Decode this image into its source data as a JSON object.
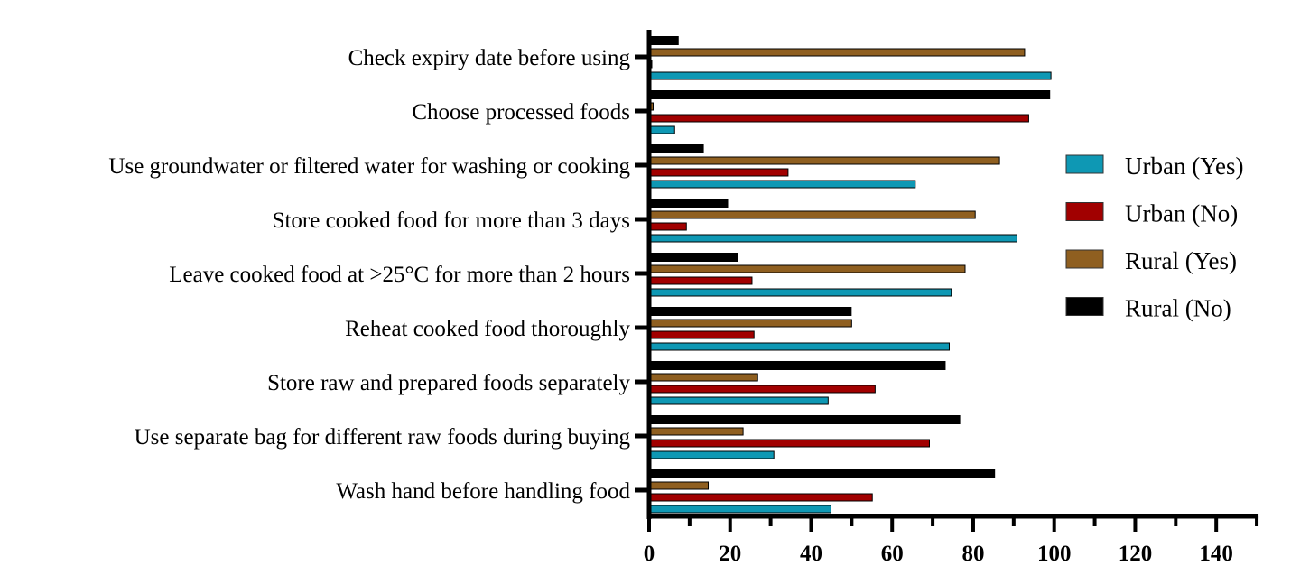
{
  "chart_data": {
    "type": "bar",
    "orientation": "horizontal",
    "title": "",
    "xlabel": "",
    "ylabel": "",
    "xlim": [
      0,
      150
    ],
    "xticks": [
      0,
      20,
      40,
      60,
      80,
      100,
      120,
      140
    ],
    "grid": false,
    "legend_position": "right",
    "categories": [
      "Check expiry date before using",
      "Choose processed foods",
      "Use groundwater or filtered water for washing or cooking",
      "Store cooked food for more than 3 days",
      "Leave cooked food at >25°C for more than 2 hours",
      "Reheat cooked food thoroughly",
      "Store raw and prepared foods separately",
      "Use separate bag for different raw foods during buying",
      "Wash hand before handling food"
    ],
    "series": [
      {
        "name": "Urban (Yes)",
        "color": "#0e98b4",
        "values": [
          99.2,
          6.3,
          65.7,
          90.8,
          74.6,
          74.1,
          44.2,
          30.8,
          44.9
        ]
      },
      {
        "name": "Urban (No)",
        "color": "#a10000",
        "values": [
          0.2,
          93.7,
          34.3,
          9.2,
          25.4,
          25.9,
          55.8,
          69.2,
          55.1
        ]
      },
      {
        "name": "Rural (Yes)",
        "color": "#8f5f20",
        "values": [
          92.7,
          1.0,
          86.5,
          80.5,
          78.0,
          50.0,
          26.8,
          23.2,
          14.6
        ]
      },
      {
        "name": "Rural (No)",
        "color": "#000000",
        "values": [
          7.3,
          99.0,
          13.5,
          19.5,
          22.0,
          50.0,
          73.2,
          76.8,
          85.4
        ]
      }
    ]
  }
}
